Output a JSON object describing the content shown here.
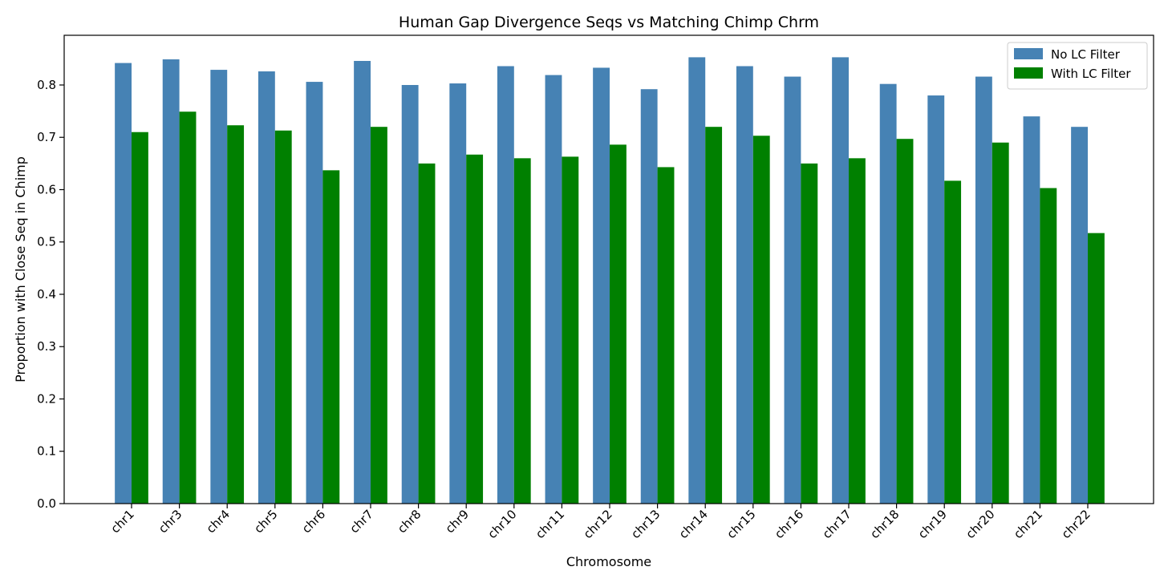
{
  "chart_data": {
    "type": "bar",
    "title": "Human Gap Divergence Seqs vs Matching Chimp Chrm",
    "xlabel": "Chromosome",
    "ylabel": "Proportion with Close Seq in Chimp",
    "ylim": [
      0,
      0.895
    ],
    "yticks": [
      "0.0",
      "0.1",
      "0.2",
      "0.3",
      "0.4",
      "0.5",
      "0.6",
      "0.7",
      "0.8"
    ],
    "grid": false,
    "legend_position": "top-right",
    "categories": [
      "chr1",
      "chr3",
      "chr4",
      "chr5",
      "chr6",
      "chr7",
      "chr8",
      "chr9",
      "chr10",
      "chr11",
      "chr12",
      "chr13",
      "chr14",
      "chr15",
      "chr16",
      "chr17",
      "chr18",
      "chr19",
      "chr20",
      "chr21",
      "chr22"
    ],
    "series": [
      {
        "name": "No LC Filter",
        "color": "#4682b4",
        "values": [
          0.842,
          0.849,
          0.829,
          0.826,
          0.806,
          0.846,
          0.8,
          0.803,
          0.836,
          0.819,
          0.833,
          0.792,
          0.853,
          0.836,
          0.816,
          0.853,
          0.802,
          0.78,
          0.816,
          0.74,
          0.72
        ]
      },
      {
        "name": "With LC Filter",
        "color": "#008000",
        "values": [
          0.71,
          0.749,
          0.723,
          0.713,
          0.637,
          0.72,
          0.65,
          0.667,
          0.66,
          0.663,
          0.686,
          0.643,
          0.72,
          0.703,
          0.65,
          0.66,
          0.697,
          0.617,
          0.69,
          0.603,
          0.517
        ]
      }
    ]
  }
}
